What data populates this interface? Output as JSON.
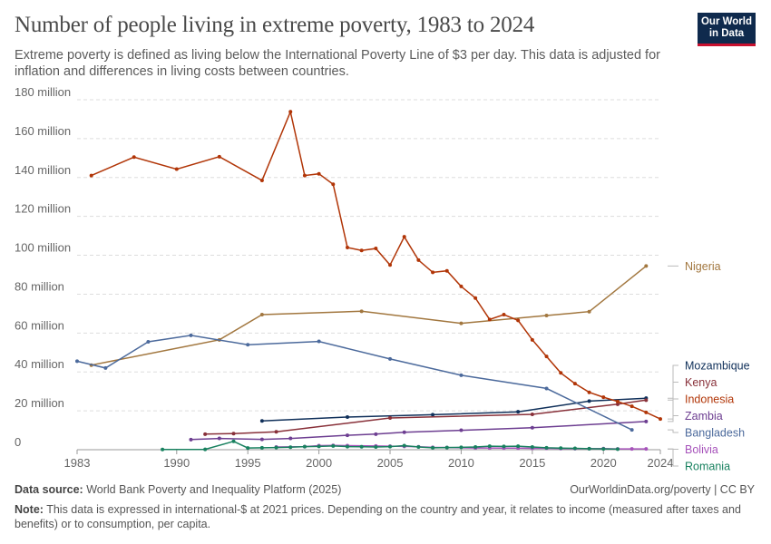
{
  "header": {
    "title": "Number of people living in extreme poverty, 1983 to 2024",
    "subtitle": "Extreme poverty is defined as living below the International Poverty Line of $3 per day. This data is adjusted for inflation and differences in living costs between countries."
  },
  "logo": {
    "line1": "Our World",
    "line2": "in Data"
  },
  "footer": {
    "source_label": "Data source:",
    "source_text": " World Bank Poverty and Inequality Platform (2025)",
    "credit": "OurWorldinData.org/poverty | CC BY",
    "note_label": "Note:",
    "note_text": " This data is expressed in international-$ at 2021 prices. Depending on the country and year, it relates to income (measured after taxes and benefits) or to consumption, per capita."
  },
  "chart_data": {
    "type": "line",
    "xlim": [
      1983,
      2024
    ],
    "ylim": [
      0,
      180
    ],
    "x_ticks": [
      {
        "value": 1983,
        "label": "1983"
      },
      {
        "value": 1990,
        "label": "1990"
      },
      {
        "value": 1995,
        "label": "1995"
      },
      {
        "value": 2000,
        "label": "2000"
      },
      {
        "value": 2005,
        "label": "2005"
      },
      {
        "value": 2010,
        "label": "2010"
      },
      {
        "value": 2015,
        "label": "2015"
      },
      {
        "value": 2020,
        "label": "2020"
      },
      {
        "value": 2024,
        "label": "2024"
      }
    ],
    "y_ticks": [
      {
        "value": 0,
        "label": "0"
      },
      {
        "value": 20,
        "label": "20 million"
      },
      {
        "value": 40,
        "label": "40 million"
      },
      {
        "value": 60,
        "label": "60 million"
      },
      {
        "value": 80,
        "label": "80 million"
      },
      {
        "value": 100,
        "label": "100 million"
      },
      {
        "value": 120,
        "label": "120 million"
      },
      {
        "value": 140,
        "label": "140 million"
      },
      {
        "value": 160,
        "label": "160 million"
      },
      {
        "value": 180,
        "label": "180 million"
      }
    ],
    "grid": true,
    "legend": "right",
    "series": [
      {
        "name": "Nigeria",
        "color": "#a2773f",
        "points": [
          [
            1984,
            43.5
          ],
          [
            1993,
            56.5
          ],
          [
            1996,
            69.5
          ],
          [
            2003,
            71.2
          ],
          [
            2010,
            65
          ],
          [
            2016,
            69
          ],
          [
            2019,
            71
          ],
          [
            2023,
            94.5
          ]
        ]
      },
      {
        "name": "Mozambique",
        "color": "#10305a",
        "points": [
          [
            1996,
            14.8
          ],
          [
            2002,
            16.8
          ],
          [
            2008,
            18
          ],
          [
            2014,
            19.5
          ],
          [
            2019,
            25
          ],
          [
            2023,
            26.5
          ]
        ]
      },
      {
        "name": "Kenya",
        "color": "#883039",
        "points": [
          [
            1992,
            8
          ],
          [
            1994,
            8.3
          ],
          [
            1997,
            9.2
          ],
          [
            2005,
            16.3
          ],
          [
            2015,
            18.2
          ],
          [
            2021,
            23.4
          ],
          [
            2023,
            25.5
          ]
        ]
      },
      {
        "name": "Indonesia",
        "color": "#b13507",
        "points": [
          [
            1984,
            141
          ],
          [
            1987,
            150.5
          ],
          [
            1990,
            144.3
          ],
          [
            1993,
            150.7
          ],
          [
            1996,
            138.5
          ],
          [
            1998,
            173.8
          ],
          [
            1999,
            141
          ],
          [
            2000,
            141.9
          ],
          [
            2001,
            136.5
          ],
          [
            2002,
            104
          ],
          [
            2003,
            102.5
          ],
          [
            2004,
            103.5
          ],
          [
            2005,
            95
          ],
          [
            2006,
            109.5
          ],
          [
            2007,
            97.5
          ],
          [
            2008,
            91.2
          ],
          [
            2009,
            92
          ],
          [
            2010,
            84
          ],
          [
            2011,
            78
          ],
          [
            2012,
            67
          ],
          [
            2013,
            69.5
          ],
          [
            2014,
            66.5
          ],
          [
            2015,
            56.5
          ],
          [
            2016,
            48
          ],
          [
            2017,
            39.5
          ],
          [
            2018,
            34
          ],
          [
            2019,
            29.5
          ],
          [
            2020,
            27
          ],
          [
            2021,
            24.8
          ],
          [
            2022,
            22.3
          ],
          [
            2023,
            19.2
          ],
          [
            2024,
            15.8
          ]
        ]
      },
      {
        "name": "Zambia",
        "color": "#6d3e91",
        "points": [
          [
            1991,
            5.2
          ],
          [
            1993,
            5.8
          ],
          [
            1996,
            5.3
          ],
          [
            1998,
            5.8
          ],
          [
            2002,
            7.4
          ],
          [
            2004,
            8
          ],
          [
            2006,
            9
          ],
          [
            2010,
            10
          ],
          [
            2015,
            11.3
          ],
          [
            2023,
            14.5
          ]
        ]
      },
      {
        "name": "Bangladesh",
        "color": "#4c6a9c",
        "points": [
          [
            1983,
            45.5
          ],
          [
            1985,
            42
          ],
          [
            1988,
            55.5
          ],
          [
            1991,
            58.8
          ],
          [
            1995,
            54
          ],
          [
            2000,
            55.7
          ],
          [
            2005,
            46.7
          ],
          [
            2010,
            38.3
          ],
          [
            2016,
            31.5
          ],
          [
            2022,
            10.2
          ]
        ]
      },
      {
        "name": "Bolivia",
        "color": "#a652ba",
        "points": [
          [
            1997,
            1.4
          ],
          [
            1999,
            1.6
          ],
          [
            2000,
            2.1
          ],
          [
            2001,
            2.2
          ],
          [
            2002,
            2.1
          ],
          [
            2004,
            1.9
          ],
          [
            2005,
            1.8
          ],
          [
            2006,
            1.7
          ],
          [
            2007,
            1.5
          ],
          [
            2008,
            1.2
          ],
          [
            2009,
            1.1
          ],
          [
            2011,
            0.9
          ],
          [
            2012,
            0.9
          ],
          [
            2013,
            0.8
          ],
          [
            2014,
            0.8
          ],
          [
            2015,
            0.7
          ],
          [
            2016,
            0.7
          ],
          [
            2017,
            0.6
          ],
          [
            2018,
            0.5
          ],
          [
            2019,
            0.5
          ],
          [
            2020,
            0.6
          ],
          [
            2021,
            0.4
          ],
          [
            2022,
            0.4
          ],
          [
            2023,
            0.4
          ]
        ]
      },
      {
        "name": "Romania",
        "color": "#18815f",
        "points": [
          [
            1989,
            0.1
          ],
          [
            1992,
            0.2
          ],
          [
            1994,
            4.3
          ],
          [
            1995,
            0.9
          ],
          [
            1996,
            1
          ],
          [
            1997,
            1.1
          ],
          [
            1998,
            1.3
          ],
          [
            1999,
            1.6
          ],
          [
            2000,
            1.7
          ],
          [
            2001,
            1.9
          ],
          [
            2002,
            1.6
          ],
          [
            2003,
            1.5
          ],
          [
            2004,
            1.4
          ],
          [
            2005,
            1.6
          ],
          [
            2006,
            2.1
          ],
          [
            2007,
            1.4
          ],
          [
            2008,
            1
          ],
          [
            2009,
            1.1
          ],
          [
            2010,
            1.2
          ],
          [
            2011,
            1.4
          ],
          [
            2012,
            1.8
          ],
          [
            2013,
            1.7
          ],
          [
            2014,
            1.8
          ],
          [
            2015,
            1.4
          ],
          [
            2016,
            1
          ],
          [
            2017,
            0.8
          ],
          [
            2018,
            0.7
          ],
          [
            2019,
            0.5
          ],
          [
            2020,
            0.4
          ],
          [
            2021,
            0.3
          ]
        ]
      }
    ]
  }
}
